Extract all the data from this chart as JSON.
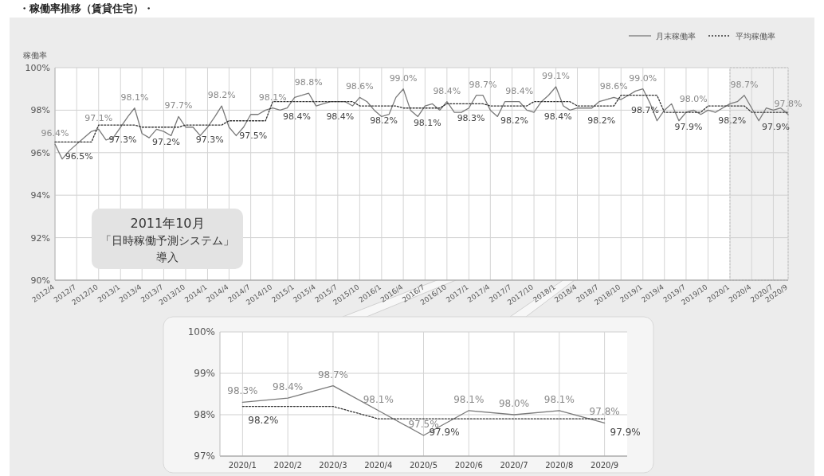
{
  "chart_data": [
    {
      "type": "line",
      "title": "・稼働率推移（賃貸住宅）・",
      "ylabel": "稼働率",
      "legend": "top right",
      "grid": true,
      "x": [
        "2012-04",
        "2012-05",
        "2012-06",
        "2012-07",
        "2012-08",
        "2012-09",
        "2012-10",
        "2012-11",
        "2012-12",
        "2013-01",
        "2013-02",
        "2013-03",
        "2013-04",
        "2013-05",
        "2013-06",
        "2013-07",
        "2013-08",
        "2013-09",
        "2013-10",
        "2013-11",
        "2013-12",
        "2014-01",
        "2014-02",
        "2014-03",
        "2014-04",
        "2014-05",
        "2014-06",
        "2014-07",
        "2014-08",
        "2014-09",
        "2014-10",
        "2014-11",
        "2014-12",
        "2015-01",
        "2015-02",
        "2015-03",
        "2015-04",
        "2015-05",
        "2015-06",
        "2015-07",
        "2015-08",
        "2015-09",
        "2015-10",
        "2015-11",
        "2015-12",
        "2016-01",
        "2016-02",
        "2016-03",
        "2016-04",
        "2016-05",
        "2016-06",
        "2016-07",
        "2016-08",
        "2016-09",
        "2016-10",
        "2016-11",
        "2016-12",
        "2017-01",
        "2017-02",
        "2017-03",
        "2017-04",
        "2017-05",
        "2017-06",
        "2017-07",
        "2017-08",
        "2017-09",
        "2017-10",
        "2017-11",
        "2017-12",
        "2018-01",
        "2018-02",
        "2018-03",
        "2018-04",
        "2018-05",
        "2018-06",
        "2018-07",
        "2018-08",
        "2018-09",
        "2018-10",
        "2018-11",
        "2018-12",
        "2019-01",
        "2019-02",
        "2019-03",
        "2019-04",
        "2019-05",
        "2019-06",
        "2019-07",
        "2019-08",
        "2019-09",
        "2019-10",
        "2019-11",
        "2019-12",
        "2020-01",
        "2020-02",
        "2020-03",
        "2020-04",
        "2020-05",
        "2020-06",
        "2020-07",
        "2020-08",
        "2020-09"
      ],
      "xlim": [
        "2012-04",
        "2020-09"
      ],
      "xticks": [
        {
          "value": "2012-04",
          "label": "2012/4"
        },
        {
          "value": "2012-07",
          "label": "2012/7"
        },
        {
          "value": "2012-10",
          "label": "2012/10"
        },
        {
          "value": "2013-01",
          "label": "2013/1"
        },
        {
          "value": "2013-04",
          "label": "2013/4"
        },
        {
          "value": "2013-07",
          "label": "2013/7"
        },
        {
          "value": "2013-10",
          "label": "2013/10"
        },
        {
          "value": "2014-01",
          "label": "2014/1"
        },
        {
          "value": "2014-04",
          "label": "2014/4"
        },
        {
          "value": "2014-07",
          "label": "2014/7"
        },
        {
          "value": "2014-10",
          "label": "2014/10"
        },
        {
          "value": "2015-01",
          "label": "2015/1"
        },
        {
          "value": "2015-04",
          "label": "2015/4"
        },
        {
          "value": "2015-07",
          "label": "2015/7"
        },
        {
          "value": "2015-10",
          "label": "2015/10"
        },
        {
          "value": "2016-01",
          "label": "2016/1"
        },
        {
          "value": "2016-04",
          "label": "2016/4"
        },
        {
          "value": "2016-07",
          "label": "2016/7"
        },
        {
          "value": "2016-10",
          "label": "2016/10"
        },
        {
          "value": "2017-01",
          "label": "2017/1"
        },
        {
          "value": "2017-04",
          "label": "2017/4"
        },
        {
          "value": "2017-07",
          "label": "2017/7"
        },
        {
          "value": "2017-10",
          "label": "2017/10"
        },
        {
          "value": "2018-01",
          "label": "2018/1"
        },
        {
          "value": "2018-04",
          "label": "2018/4"
        },
        {
          "value": "2018-07",
          "label": "2018/7"
        },
        {
          "value": "2018-10",
          "label": "2018/10"
        },
        {
          "value": "2019-01",
          "label": "2019/1"
        },
        {
          "value": "2019-04",
          "label": "2019/4"
        },
        {
          "value": "2019-07",
          "label": "2019/7"
        },
        {
          "value": "2019-10",
          "label": "2019/10"
        },
        {
          "value": "2020-01",
          "label": "2020/1"
        },
        {
          "value": "2020-04",
          "label": "2020/4"
        },
        {
          "value": "2020-07",
          "label": "2020/7"
        },
        {
          "value": "2020-09",
          "label": "2020/9"
        }
      ],
      "ylim": [
        90,
        100
      ],
      "yticks": [
        {
          "value": 90,
          "label": "90%"
        },
        {
          "value": 92,
          "label": "92%"
        },
        {
          "value": 94,
          "label": "94%"
        },
        {
          "value": 96,
          "label": "96%"
        },
        {
          "value": 98,
          "label": "98%"
        },
        {
          "value": 100,
          "label": "100%"
        }
      ],
      "series": [
        {
          "name": "月末稼働率",
          "color": "#7a7a7a",
          "line_style": "solid",
          "values": [
            96.4,
            95.7,
            96.1,
            96.4,
            96.7,
            97.0,
            97.1,
            96.6,
            96.7,
            97.2,
            97.7,
            98.1,
            96.9,
            96.7,
            97.1,
            97.0,
            96.8,
            97.7,
            97.2,
            97.2,
            96.8,
            97.2,
            97.7,
            98.2,
            97.2,
            96.8,
            97.2,
            97.8,
            97.8,
            98.0,
            98.1,
            98.0,
            98.1,
            98.6,
            98.7,
            98.8,
            98.2,
            98.3,
            98.4,
            98.4,
            98.4,
            98.2,
            98.6,
            98.4,
            98.0,
            97.7,
            97.8,
            98.6,
            99.0,
            98.0,
            97.7,
            98.2,
            98.3,
            98.0,
            98.4,
            97.9,
            97.9,
            98.1,
            98.7,
            98.7,
            98.0,
            97.7,
            98.4,
            98.4,
            98.4,
            98.0,
            97.9,
            98.4,
            98.7,
            99.1,
            98.2,
            98.0,
            98.1,
            98.1,
            98.1,
            98.4,
            98.5,
            98.6,
            98.5,
            98.7,
            98.9,
            99.0,
            98.3,
            97.5,
            98.0,
            98.3,
            97.5,
            97.9,
            98.0,
            97.8,
            98.0,
            97.9,
            98.1,
            98.3,
            98.4,
            98.7,
            98.1,
            97.5,
            98.1,
            98.0,
            98.1,
            97.8
          ],
          "value_labels": [
            "96.4%",
            null,
            null,
            null,
            null,
            null,
            "97.1%",
            null,
            null,
            null,
            null,
            "98.1%",
            null,
            null,
            null,
            null,
            null,
            "97.7%",
            null,
            null,
            null,
            null,
            null,
            "98.2%",
            null,
            null,
            null,
            null,
            null,
            null,
            "98.1%",
            null,
            null,
            null,
            null,
            "98.8%",
            null,
            null,
            null,
            null,
            null,
            null,
            "98.6%",
            null,
            null,
            null,
            null,
            null,
            "99.0%",
            null,
            null,
            null,
            null,
            null,
            "98.4%",
            null,
            null,
            null,
            null,
            "98.7%",
            null,
            null,
            null,
            null,
            "98.4%",
            null,
            null,
            null,
            null,
            "99.1%",
            null,
            null,
            null,
            null,
            null,
            null,
            null,
            "98.6%",
            null,
            null,
            null,
            "99.0%",
            null,
            null,
            null,
            null,
            null,
            null,
            "98.0%",
            null,
            null,
            null,
            null,
            null,
            null,
            "98.7%",
            null,
            null,
            null,
            null,
            null,
            "97.8%"
          ]
        },
        {
          "name": "平均稼働率",
          "color": "#333333",
          "line_style": "dotted",
          "values": [
            96.5,
            96.5,
            96.5,
            96.5,
            96.5,
            96.5,
            97.3,
            97.3,
            97.3,
            97.3,
            97.3,
            97.3,
            97.2,
            97.2,
            97.2,
            97.2,
            97.2,
            97.2,
            97.3,
            97.3,
            97.3,
            97.3,
            97.3,
            97.3,
            97.5,
            97.5,
            97.5,
            97.5,
            97.5,
            97.5,
            98.4,
            98.4,
            98.4,
            98.4,
            98.4,
            98.4,
            98.4,
            98.4,
            98.4,
            98.4,
            98.4,
            98.4,
            98.2,
            98.2,
            98.2,
            98.2,
            98.2,
            98.2,
            98.1,
            98.1,
            98.1,
            98.1,
            98.1,
            98.1,
            98.3,
            98.3,
            98.3,
            98.3,
            98.3,
            98.3,
            98.2,
            98.2,
            98.2,
            98.2,
            98.2,
            98.2,
            98.4,
            98.4,
            98.4,
            98.4,
            98.4,
            98.4,
            98.2,
            98.2,
            98.2,
            98.2,
            98.2,
            98.2,
            98.7,
            98.7,
            98.7,
            98.7,
            98.7,
            98.7,
            97.9,
            97.9,
            97.9,
            97.9,
            97.9,
            97.9,
            98.2,
            98.2,
            98.2,
            98.2,
            98.2,
            98.2,
            97.9,
            97.9,
            97.9,
            97.9,
            97.9,
            97.9
          ],
          "value_labels": [
            null,
            null,
            "96.5%",
            null,
            null,
            null,
            null,
            null,
            "97.3%",
            null,
            null,
            null,
            null,
            null,
            "97.2%",
            null,
            null,
            null,
            null,
            null,
            "97.3%",
            null,
            null,
            null,
            null,
            null,
            "97.5%",
            null,
            null,
            null,
            null,
            null,
            "98.4%",
            null,
            null,
            null,
            null,
            null,
            "98.4%",
            null,
            null,
            null,
            null,
            null,
            "98.2%",
            null,
            null,
            null,
            null,
            null,
            "98.1%",
            null,
            null,
            null,
            null,
            null,
            "98.3%",
            null,
            null,
            null,
            null,
            null,
            "98.2%",
            null,
            null,
            null,
            null,
            null,
            "98.4%",
            null,
            null,
            null,
            null,
            null,
            "98.2%",
            null,
            null,
            null,
            null,
            null,
            "98.7%",
            null,
            null,
            null,
            null,
            null,
            "97.9%",
            null,
            null,
            null,
            null,
            null,
            "98.2%",
            null,
            null,
            null,
            null,
            null,
            "97.9%",
            null,
            null,
            null
          ]
        }
      ],
      "bands": [
        {
          "axis": "x",
          "from": "2020-01",
          "to": "2020-09",
          "color": "#f0f0f0"
        }
      ],
      "annotations": [
        "2011年10月「日時稼働予測システム」導入"
      ]
    },
    {
      "type": "line",
      "grid": true,
      "categories": [
        "2020/1",
        "2020/2",
        "2020/3",
        "2020/4",
        "2020/5",
        "2020/6",
        "2020/7",
        "2020/8",
        "2020/9"
      ],
      "ylim": [
        97,
        100
      ],
      "yticks": [
        {
          "value": 97,
          "label": "97%"
        },
        {
          "value": 98,
          "label": "98%"
        },
        {
          "value": 99,
          "label": "99%"
        },
        {
          "value": 100,
          "label": "100%"
        }
      ],
      "series": [
        {
          "color": "#7a7a7a",
          "line_style": "solid",
          "values": [
            98.3,
            98.4,
            98.7,
            98.1,
            97.5,
            98.1,
            98.0,
            98.1,
            97.8
          ],
          "value_labels": [
            "98.3%",
            "98.4%",
            "98.7%",
            "98.1%",
            "97.5%",
            "98.1%",
            "98.0%",
            "98.1%",
            "97.8%"
          ]
        },
        {
          "color": "#333333",
          "line_style": "dotted",
          "values": [
            98.2,
            98.2,
            98.2,
            97.9,
            97.9,
            97.9,
            97.9,
            97.9,
            97.9
          ],
          "value_labels": [
            "98.2%",
            null,
            null,
            null,
            "97.9%",
            null,
            null,
            null,
            "97.9%"
          ]
        }
      ]
    }
  ]
}
